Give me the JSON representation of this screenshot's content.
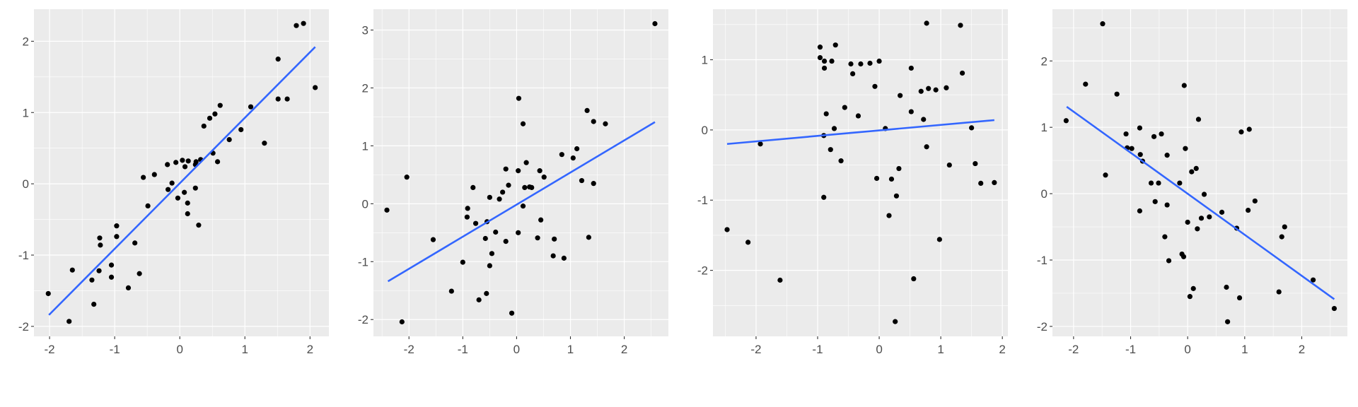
{
  "colors": {
    "panel_bg": "#ebebeb",
    "grid": "#ffffff",
    "point": "#000000",
    "fit_line": "#3366ff",
    "tick_text": "#4d4d4d",
    "tick_mark": "#333333"
  },
  "chart_data": [
    {
      "type": "scatter",
      "title": "",
      "xlabel": "",
      "ylabel": "",
      "grid": true,
      "xlim": [
        -2.24,
        2.29
      ],
      "ylim": [
        -2.14,
        2.45
      ],
      "xticks": [
        -2,
        -1,
        0,
        1,
        2
      ],
      "yticks": [
        -2,
        -1,
        0,
        1,
        2
      ],
      "fit_line": {
        "x": [
          -2.01,
          2.08
        ],
        "y": [
          -1.84,
          1.92
        ]
      },
      "points": [
        [
          -2.02,
          -1.54
        ],
        [
          -1.7,
          -1.93
        ],
        [
          -1.65,
          -1.21
        ],
        [
          -1.35,
          -1.35
        ],
        [
          -1.32,
          -1.69
        ],
        [
          -1.23,
          -0.76
        ],
        [
          -1.22,
          -0.86
        ],
        [
          -1.24,
          -1.22
        ],
        [
          -1.05,
          -1.14
        ],
        [
          -1.05,
          -1.31
        ],
        [
          -0.97,
          -0.59
        ],
        [
          -0.97,
          -0.74
        ],
        [
          -0.79,
          -1.46
        ],
        [
          -0.69,
          -0.83
        ],
        [
          -0.62,
          -1.26
        ],
        [
          -0.56,
          0.09
        ],
        [
          -0.49,
          -0.31
        ],
        [
          -0.39,
          0.13
        ],
        [
          -0.19,
          0.27
        ],
        [
          -0.18,
          -0.08
        ],
        [
          -0.12,
          0.01
        ],
        [
          -0.06,
          0.3
        ],
        [
          -0.03,
          -0.2
        ],
        [
          0.04,
          0.33
        ],
        [
          0.13,
          0.32
        ],
        [
          0.08,
          0.24
        ],
        [
          0.07,
          -0.12
        ],
        [
          0.12,
          -0.27
        ],
        [
          0.12,
          -0.42
        ],
        [
          0.25,
          0.31
        ],
        [
          0.24,
          0.27
        ],
        [
          0.32,
          0.34
        ],
        [
          0.24,
          -0.06
        ],
        [
          0.29,
          -0.58
        ],
        [
          0.37,
          0.81
        ],
        [
          0.46,
          0.92
        ],
        [
          0.54,
          0.98
        ],
        [
          0.62,
          1.1
        ],
        [
          0.51,
          0.43
        ],
        [
          0.58,
          0.31
        ],
        [
          0.76,
          0.62
        ],
        [
          0.94,
          0.76
        ],
        [
          1.09,
          1.08
        ],
        [
          1.3,
          0.57
        ],
        [
          1.51,
          1.75
        ],
        [
          1.51,
          1.19
        ],
        [
          1.65,
          1.19
        ],
        [
          1.79,
          2.22
        ],
        [
          1.9,
          2.25
        ],
        [
          2.08,
          1.35
        ]
      ]
    },
    {
      "type": "scatter",
      "title": "",
      "xlabel": "",
      "ylabel": "",
      "grid": true,
      "xlim": [
        -2.66,
        2.82
      ],
      "ylim": [
        -2.29,
        3.36
      ],
      "xticks": [
        -2,
        -1,
        0,
        1,
        2
      ],
      "yticks": [
        -2,
        -1,
        0,
        1,
        2,
        3
      ],
      "fit_line": {
        "x": [
          -2.39,
          2.57
        ],
        "y": [
          -1.34,
          1.41
        ]
      },
      "points": [
        [
          -2.41,
          -0.11
        ],
        [
          -2.13,
          -2.04
        ],
        [
          -2.04,
          0.46
        ],
        [
          -1.55,
          -0.62
        ],
        [
          -1.21,
          -1.51
        ],
        [
          -1.0,
          -1.01
        ],
        [
          -0.92,
          -0.23
        ],
        [
          -0.91,
          -0.08
        ],
        [
          -0.81,
          0.28
        ],
        [
          -0.76,
          -0.34
        ],
        [
          -0.7,
          -1.66
        ],
        [
          -0.58,
          -0.6
        ],
        [
          -0.55,
          -0.31
        ],
        [
          -0.56,
          -1.55
        ],
        [
          -0.5,
          0.11
        ],
        [
          -0.5,
          -1.07
        ],
        [
          -0.46,
          -0.86
        ],
        [
          -0.39,
          -0.49
        ],
        [
          -0.32,
          0.08
        ],
        [
          -0.26,
          0.2
        ],
        [
          -0.2,
          0.6
        ],
        [
          -0.2,
          -0.65
        ],
        [
          -0.15,
          0.32
        ],
        [
          -0.09,
          -1.89
        ],
        [
          0.03,
          0.57
        ],
        [
          0.03,
          -0.5
        ],
        [
          0.04,
          1.82
        ],
        [
          0.12,
          1.38
        ],
        [
          0.12,
          -0.04
        ],
        [
          0.15,
          0.28
        ],
        [
          0.18,
          0.71
        ],
        [
          0.24,
          0.29
        ],
        [
          0.28,
          0.28
        ],
        [
          0.39,
          -0.59
        ],
        [
          0.43,
          0.57
        ],
        [
          0.45,
          -0.28
        ],
        [
          0.51,
          0.46
        ],
        [
          0.68,
          -0.9
        ],
        [
          0.7,
          -0.61
        ],
        [
          0.84,
          0.85
        ],
        [
          0.88,
          -0.94
        ],
        [
          1.05,
          0.79
        ],
        [
          1.12,
          0.95
        ],
        [
          1.21,
          0.4
        ],
        [
          1.31,
          1.61
        ],
        [
          1.34,
          -0.58
        ],
        [
          1.43,
          1.42
        ],
        [
          1.43,
          0.35
        ],
        [
          1.65,
          1.38
        ],
        [
          2.57,
          3.11
        ]
      ]
    },
    {
      "type": "scatter",
      "title": "",
      "xlabel": "",
      "ylabel": "",
      "grid": true,
      "xlim": [
        -2.7,
        2.09
      ],
      "ylim": [
        -2.94,
        1.72
      ],
      "xticks": [
        -2,
        -1,
        0,
        1,
        2
      ],
      "yticks": [
        -2,
        -1,
        0,
        1
      ],
      "fit_line": {
        "x": [
          -2.47,
          1.87
        ],
        "y": [
          -0.2,
          0.14
        ]
      },
      "points": [
        [
          -2.47,
          -1.42
        ],
        [
          -2.13,
          -1.6
        ],
        [
          -1.93,
          -0.2
        ],
        [
          -1.61,
          -2.14
        ],
        [
          -0.96,
          1.18
        ],
        [
          -0.96,
          1.03
        ],
        [
          -0.89,
          0.98
        ],
        [
          -0.89,
          0.88
        ],
        [
          -0.9,
          -0.08
        ],
        [
          -0.9,
          -0.96
        ],
        [
          -0.86,
          0.23
        ],
        [
          -0.79,
          -0.28
        ],
        [
          -0.77,
          0.98
        ],
        [
          -0.73,
          0.02
        ],
        [
          -0.71,
          1.21
        ],
        [
          -0.62,
          -0.44
        ],
        [
          -0.56,
          0.32
        ],
        [
          -0.46,
          0.94
        ],
        [
          -0.43,
          0.8
        ],
        [
          -0.34,
          0.2
        ],
        [
          -0.3,
          0.94
        ],
        [
          -0.15,
          0.95
        ],
        [
          -0.07,
          0.62
        ],
        [
          -0.04,
          -0.69
        ],
        [
          0.0,
          0.98
        ],
        [
          0.1,
          0.02
        ],
        [
          0.16,
          -1.22
        ],
        [
          0.2,
          -0.7
        ],
        [
          0.26,
          -2.73
        ],
        [
          0.28,
          -0.94
        ],
        [
          0.32,
          -0.55
        ],
        [
          0.34,
          0.49
        ],
        [
          0.52,
          0.88
        ],
        [
          0.52,
          0.26
        ],
        [
          0.56,
          -2.12
        ],
        [
          0.68,
          0.55
        ],
        [
          0.72,
          0.15
        ],
        [
          0.77,
          1.52
        ],
        [
          0.77,
          -0.24
        ],
        [
          0.8,
          0.59
        ],
        [
          0.92,
          0.57
        ],
        [
          0.98,
          -1.56
        ],
        [
          1.09,
          0.6
        ],
        [
          1.14,
          -0.5
        ],
        [
          1.32,
          1.49
        ],
        [
          1.35,
          0.81
        ],
        [
          1.5,
          0.03
        ],
        [
          1.56,
          -0.48
        ],
        [
          1.65,
          -0.76
        ],
        [
          1.87,
          -0.75
        ]
      ]
    },
    {
      "type": "scatter",
      "title": "",
      "xlabel": "",
      "ylabel": "",
      "grid": true,
      "xlim": [
        -2.37,
        2.8
      ],
      "ylim": [
        -2.15,
        2.78
      ],
      "xticks": [
        -2,
        -1,
        0,
        1,
        2
      ],
      "yticks": [
        -2,
        -1,
        0,
        1,
        2
      ],
      "fit_line": {
        "x": [
          -2.12,
          2.57
        ],
        "y": [
          1.31,
          -1.59
        ]
      },
      "points": [
        [
          -2.13,
          1.1
        ],
        [
          -1.79,
          1.65
        ],
        [
          -1.49,
          2.56
        ],
        [
          -1.44,
          0.28
        ],
        [
          -1.24,
          1.5
        ],
        [
          -1.08,
          0.9
        ],
        [
          -1.06,
          0.69
        ],
        [
          -0.98,
          0.68
        ],
        [
          -0.84,
          0.99
        ],
        [
          -0.84,
          -0.26
        ],
        [
          -0.83,
          0.59
        ],
        [
          -0.79,
          0.49
        ],
        [
          -0.64,
          0.16
        ],
        [
          -0.59,
          0.86
        ],
        [
          -0.57,
          -0.12
        ],
        [
          -0.51,
          0.16
        ],
        [
          -0.46,
          0.9
        ],
        [
          -0.4,
          -0.65
        ],
        [
          -0.36,
          0.58
        ],
        [
          -0.36,
          -0.17
        ],
        [
          -0.33,
          -1.01
        ],
        [
          -0.14,
          0.16
        ],
        [
          -0.1,
          -0.91
        ],
        [
          -0.07,
          -0.95
        ],
        [
          -0.06,
          1.63
        ],
        [
          -0.04,
          0.68
        ],
        [
          0.0,
          -0.43
        ],
        [
          0.04,
          -1.55
        ],
        [
          0.07,
          0.33
        ],
        [
          0.1,
          -1.43
        ],
        [
          0.15,
          0.38
        ],
        [
          0.17,
          -0.53
        ],
        [
          0.19,
          1.12
        ],
        [
          0.24,
          -0.37
        ],
        [
          0.29,
          -0.01
        ],
        [
          0.38,
          -0.35
        ],
        [
          0.6,
          -0.28
        ],
        [
          0.68,
          -1.41
        ],
        [
          0.7,
          -1.93
        ],
        [
          0.86,
          -0.52
        ],
        [
          0.91,
          -1.57
        ],
        [
          0.94,
          0.93
        ],
        [
          1.06,
          -0.25
        ],
        [
          1.08,
          0.97
        ],
        [
          1.18,
          -0.11
        ],
        [
          1.6,
          -1.48
        ],
        [
          1.65,
          -0.65
        ],
        [
          1.7,
          -0.5
        ],
        [
          2.2,
          -1.3
        ],
        [
          2.57,
          -1.73
        ]
      ]
    }
  ]
}
